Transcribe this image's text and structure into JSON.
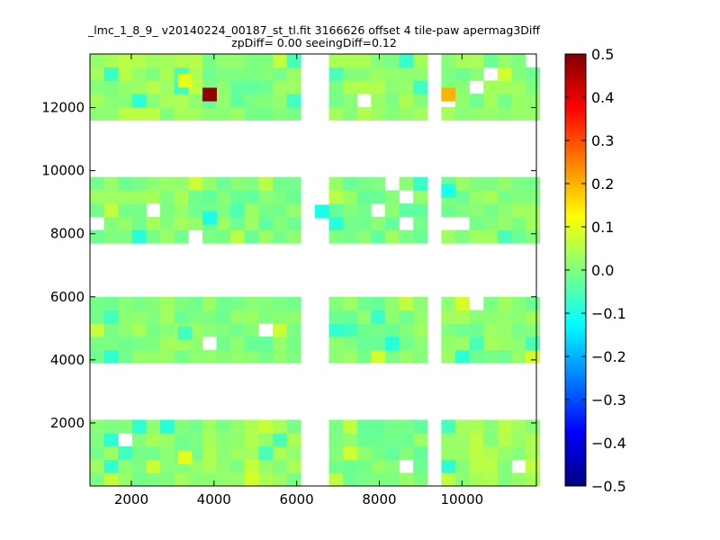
{
  "chart_data": {
    "type": "heatmap",
    "title": "_lmc_1_8_9_ v20140224_00187_st_tl.fit 3166626 offset 4 tile-paw apermag3Diff",
    "subtitle": "zpDiff= 0.00 seeingDiff=0.12",
    "xlabel": "",
    "ylabel": "",
    "xlim": [
      1000,
      11800
    ],
    "ylim": [
      0,
      13700
    ],
    "x_ticks": [
      2000,
      4000,
      6000,
      8000,
      10000
    ],
    "y_ticks": [
      2000,
      4000,
      6000,
      8000,
      10000,
      12000
    ],
    "colorbar": {
      "min": -0.5,
      "max": 0.5,
      "ticks": [
        "0.5",
        "0.4",
        "0.3",
        "0.2",
        "0.1",
        "0.0",
        "−0.1",
        "−0.2",
        "−0.3",
        "−0.4",
        "−0.5"
      ],
      "colormap": "jet"
    },
    "cell_size": [
      340,
      420
    ],
    "x_origin": 1000,
    "y_origin": 0,
    "detectors": [
      {
        "col": 0,
        "row": 0,
        "x0": 1000,
        "y0": 0,
        "nx": 8,
        "ny": 5,
        "base": 0.01,
        "seed": 11
      },
      {
        "col": 1,
        "row": 0,
        "x0": 3720,
        "y0": 0,
        "nx": 7,
        "ny": 5,
        "base": 0.02,
        "seed": 23
      },
      {
        "col": 2,
        "row": 0,
        "x0": 6780,
        "y0": 0,
        "nx": 7,
        "ny": 5,
        "base": 0.0,
        "seed": 37
      },
      {
        "col": 3,
        "row": 0,
        "x0": 9500,
        "y0": 0,
        "nx": 7,
        "ny": 5,
        "base": 0.03,
        "seed": 41
      },
      {
        "col": 0,
        "row": 1,
        "x0": 1000,
        "y0": 3900,
        "nx": 8,
        "ny": 5,
        "base": 0.01,
        "seed": 53
      },
      {
        "col": 1,
        "row": 1,
        "x0": 3720,
        "y0": 3900,
        "nx": 7,
        "ny": 5,
        "base": 0.0,
        "seed": 61
      },
      {
        "col": 2,
        "row": 1,
        "x0": 6780,
        "y0": 3900,
        "nx": 7,
        "ny": 5,
        "base": 0.0,
        "seed": 71
      },
      {
        "col": 3,
        "row": 1,
        "x0": 9500,
        "y0": 3900,
        "nx": 7,
        "ny": 5,
        "base": 0.01,
        "seed": 83
      },
      {
        "col": 0,
        "row": 2,
        "x0": 1000,
        "y0": 7700,
        "nx": 8,
        "ny": 5,
        "base": 0.01,
        "seed": 97
      },
      {
        "col": 1,
        "row": 2,
        "x0": 3720,
        "y0": 7700,
        "nx": 7,
        "ny": 5,
        "base": 0.0,
        "seed": 101
      },
      {
        "col": 2,
        "row": 2,
        "x0": 6780,
        "y0": 7700,
        "nx": 7,
        "ny": 5,
        "base": 0.0,
        "seed": 113
      },
      {
        "col": 3,
        "row": 2,
        "x0": 9500,
        "y0": 7700,
        "nx": 7,
        "ny": 5,
        "base": 0.01,
        "seed": 127
      },
      {
        "col": 0,
        "row": 3,
        "x0": 1000,
        "y0": 11600,
        "nx": 8,
        "ny": 5,
        "base": 0.03,
        "seed": 131
      },
      {
        "col": 1,
        "row": 3,
        "x0": 3720,
        "y0": 11600,
        "nx": 7,
        "ny": 5,
        "base": 0.0,
        "seed": 137
      },
      {
        "col": 2,
        "row": 3,
        "x0": 6780,
        "y0": 11600,
        "nx": 7,
        "ny": 5,
        "base": 0.02,
        "seed": 149
      },
      {
        "col": 3,
        "row": 3,
        "x0": 9500,
        "y0": 11600,
        "nx": 7,
        "ny": 5,
        "base": 0.01,
        "seed": 151
      }
    ],
    "special_cells": [
      {
        "x": 3720,
        "y": 12210,
        "value": 0.48
      },
      {
        "x": 9500,
        "y": 12210,
        "value": 0.2
      },
      {
        "x": 3120,
        "y": 12650,
        "value": 0.1
      },
      {
        "x": 3120,
        "y": 700,
        "value": 0.1
      },
      {
        "x": 3720,
        "y": 8300,
        "value": -0.1
      },
      {
        "x": 6440,
        "y": 8500,
        "value": -0.1
      },
      {
        "x": 3120,
        "y": 4650,
        "value": -0.06
      },
      {
        "x": 9500,
        "y": 9150,
        "value": -0.1
      }
    ]
  }
}
